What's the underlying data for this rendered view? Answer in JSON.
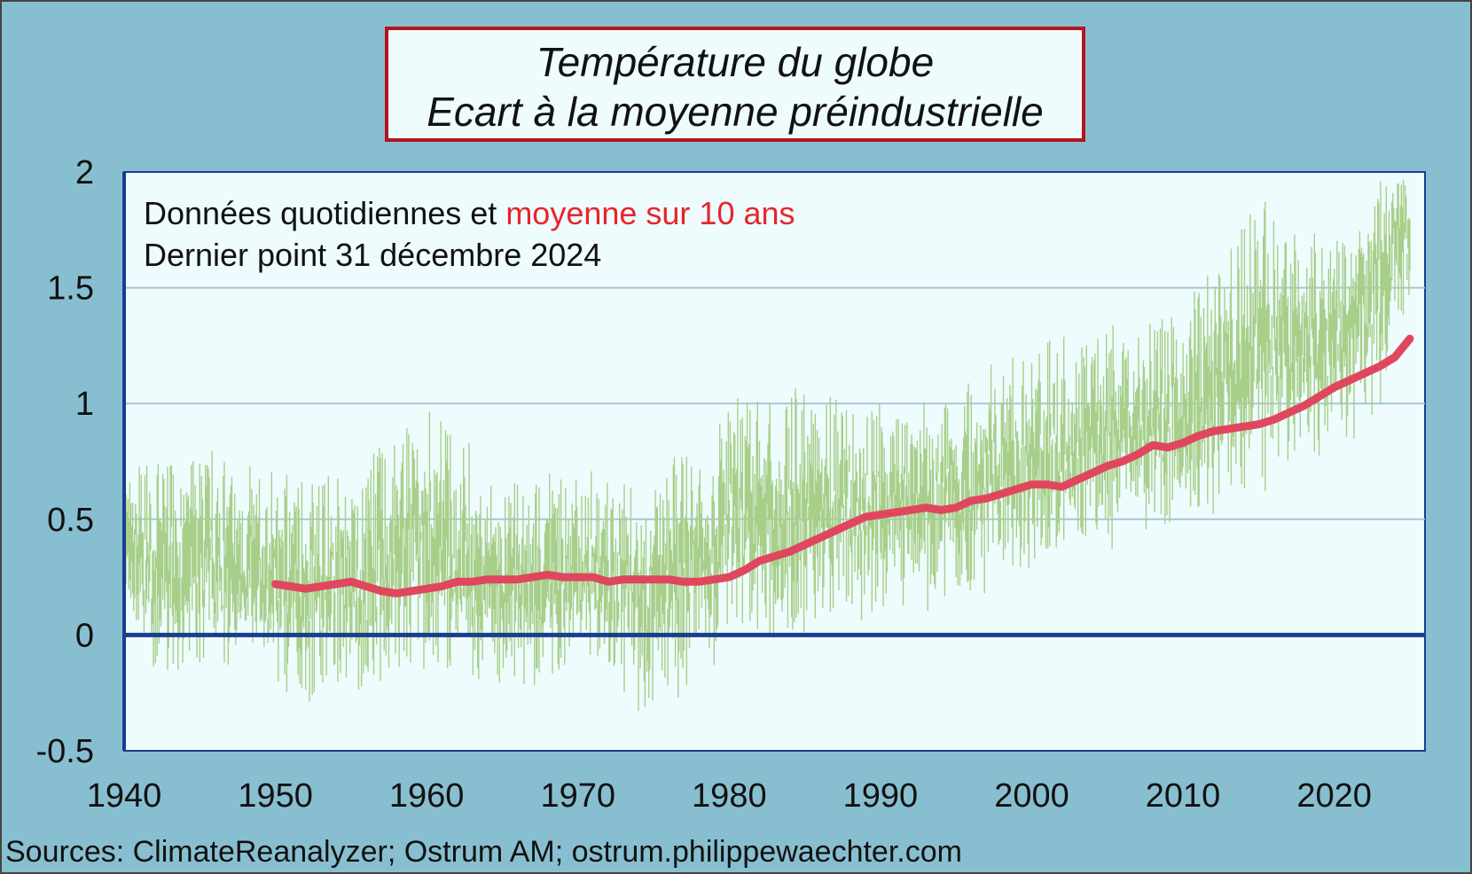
{
  "header": {
    "title_line1": "Température du globe",
    "title_line2": "Ecart à la moyenne préindustrielle"
  },
  "annotation": {
    "line1_prefix": "Données quotidiennes et ",
    "line1_highlight": "moyenne sur 10 ans",
    "line2": "Dernier point 31 décembre 2024"
  },
  "footer": {
    "source": "Sources: ClimateReanalyzer;  Ostrum AM; ostrum.philippewaechter.com"
  },
  "colors": {
    "background": "#88bfd0",
    "plot_area": "#eefcfd",
    "daily_series": "#a8cf8a",
    "moving_average": "#e0475f",
    "zero_line": "#1a3d8f",
    "gridline": "#a8c6d6",
    "title_border": "#b4141e"
  },
  "chart_data": {
    "type": "line",
    "title": "Température du globe — Ecart à la moyenne préindustrielle",
    "xlabel": "",
    "ylabel": "",
    "xlim": [
      1940,
      2026
    ],
    "ylim": [
      -0.5,
      2
    ],
    "x_ticks": [
      "1940",
      "1950",
      "1960",
      "1970",
      "1980",
      "1990",
      "2000",
      "2010",
      "2020"
    ],
    "y_ticks": [
      "2",
      "1.5",
      "1",
      "0.5",
      "0",
      "-0.5"
    ],
    "grid": true,
    "series": [
      {
        "name": "Données quotidiennes",
        "style": "daily-noisy",
        "envelope_x": [
          1940,
          1945,
          1950,
          1955,
          1960,
          1965,
          1970,
          1975,
          1980,
          1985,
          1990,
          1995,
          2000,
          2005,
          2010,
          2015,
          2020,
          2023,
          2024,
          2025
        ],
        "envelope_min": [
          -0.15,
          -0.2,
          -0.25,
          -0.3,
          -0.1,
          -0.28,
          -0.15,
          -0.35,
          -0.05,
          0.0,
          0.1,
          0.15,
          0.3,
          0.4,
          0.5,
          0.6,
          0.8,
          0.95,
          1.35,
          1.4
        ],
        "envelope_max": [
          0.75,
          0.8,
          0.7,
          0.7,
          1.0,
          0.65,
          0.7,
          0.7,
          1.0,
          1.05,
          1.0,
          1.05,
          1.25,
          1.35,
          1.4,
          1.9,
          1.7,
          2.0,
          2.0,
          1.95
        ]
      },
      {
        "name": "moyenne sur 10 ans",
        "style": "moving-average",
        "x": [
          1950,
          1951,
          1952,
          1953,
          1954,
          1955,
          1956,
          1957,
          1958,
          1959,
          1960,
          1961,
          1962,
          1963,
          1964,
          1965,
          1966,
          1967,
          1968,
          1969,
          1970,
          1971,
          1972,
          1973,
          1974,
          1975,
          1976,
          1977,
          1978,
          1979,
          1980,
          1981,
          1982,
          1983,
          1984,
          1985,
          1986,
          1987,
          1988,
          1989,
          1990,
          1991,
          1992,
          1993,
          1994,
          1995,
          1996,
          1997,
          1998,
          1999,
          2000,
          2001,
          2002,
          2003,
          2004,
          2005,
          2006,
          2007,
          2008,
          2009,
          2010,
          2011,
          2012,
          2013,
          2014,
          2015,
          2016,
          2017,
          2018,
          2019,
          2020,
          2021,
          2022,
          2023,
          2024,
          2025
        ],
        "y": [
          0.22,
          0.21,
          0.2,
          0.21,
          0.22,
          0.23,
          0.21,
          0.19,
          0.18,
          0.19,
          0.2,
          0.21,
          0.23,
          0.23,
          0.24,
          0.24,
          0.24,
          0.25,
          0.26,
          0.25,
          0.25,
          0.25,
          0.23,
          0.24,
          0.24,
          0.24,
          0.24,
          0.23,
          0.23,
          0.24,
          0.25,
          0.28,
          0.32,
          0.34,
          0.36,
          0.39,
          0.42,
          0.45,
          0.48,
          0.51,
          0.52,
          0.53,
          0.54,
          0.55,
          0.54,
          0.55,
          0.58,
          0.59,
          0.61,
          0.63,
          0.65,
          0.65,
          0.64,
          0.67,
          0.7,
          0.73,
          0.75,
          0.78,
          0.82,
          0.81,
          0.83,
          0.86,
          0.88,
          0.89,
          0.9,
          0.91,
          0.93,
          0.96,
          0.99,
          1.03,
          1.07,
          1.1,
          1.13,
          1.16,
          1.2,
          1.28
        ]
      }
    ]
  }
}
